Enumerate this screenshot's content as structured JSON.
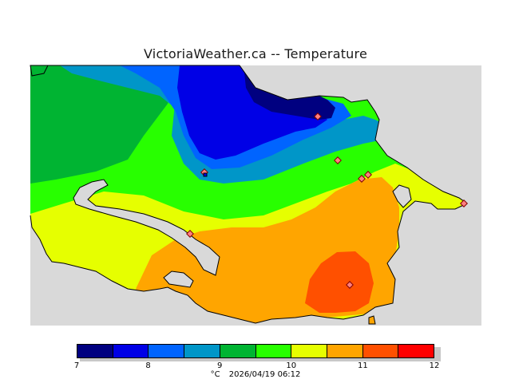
{
  "title": "VictoriaWeather.ca -- Temperature",
  "legend": {
    "ticks": [
      "7",
      "8",
      "9",
      "10",
      "11",
      "12"
    ],
    "colors": [
      "#000080",
      "#0000e6",
      "#0064ff",
      "#0096c8",
      "#00b432",
      "#28ff00",
      "#e6ff00",
      "#ffa500",
      "#ff5000",
      "#ff0000"
    ]
  },
  "footer": {
    "unit": "°C",
    "timestamp": "2026/04/19 06:12"
  },
  "map": {
    "land_colors": {
      "t7_5": "#000080",
      "t8": "#0000e6",
      "t8_5": "#0064ff",
      "t9": "#0096c8",
      "t9_5": "#00b432",
      "t10": "#28ff00",
      "t10_5": "#e6ff00",
      "t11": "#ffa500",
      "t11_5": "#ff5000"
    },
    "water_color": "#d9d9d9",
    "station_count": 9
  }
}
